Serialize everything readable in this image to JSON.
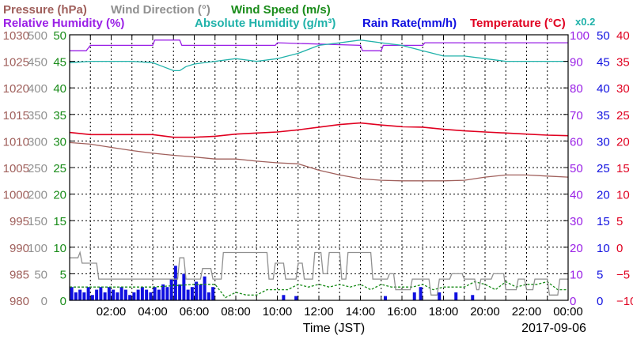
{
  "chart_data": {
    "type": "line",
    "date": "2017-09-06",
    "xlabel": "Time (JST)",
    "x_ticks": [
      "02:00",
      "04:00",
      "06:00",
      "08:00",
      "10:00",
      "12:00",
      "14:00",
      "16:00",
      "18:00",
      "20:00",
      "22:00",
      "00:00"
    ],
    "legend": [
      {
        "label": "Pressure (hPa)",
        "color": "#a0605c"
      },
      {
        "label": "Wind Direction (°)",
        "color": "#909090"
      },
      {
        "label": "Wind Speed (m/s)",
        "color": "#1a8c1a"
      },
      {
        "label": "Relative Humidity (%)",
        "color": "#9a20e6"
      },
      {
        "label": "Absolute Humidity (g/m³)",
        "color": "#20b2aa",
        "scale_note": "x0.2"
      },
      {
        "label": "Rain Rate(mm/h)",
        "color": "#1010e0"
      },
      {
        "label": "Temperature (°C)",
        "color": "#e00020"
      }
    ],
    "axes": [
      {
        "name": "Pressure",
        "unit": "hPa",
        "color": "#a0605c",
        "range": [
          980,
          1030
        ],
        "ticks": [
          "1030",
          "1025",
          "1020",
          "1015",
          "1010",
          "1005",
          "1000",
          "995",
          "990",
          "985",
          "980"
        ]
      },
      {
        "name": "Wind Direction",
        "unit": "°",
        "color": "#909090",
        "range": [
          0,
          500
        ],
        "ticks": [
          "500",
          "450",
          "400",
          "350",
          "300",
          "250",
          "200",
          "150",
          "100",
          "50",
          "0"
        ]
      },
      {
        "name": "Wind Speed",
        "unit": "m/s",
        "color": "#1a8c1a",
        "range": [
          0,
          50
        ],
        "ticks": [
          "50",
          "45",
          "40",
          "35",
          "30",
          "25",
          "20",
          "15",
          "10",
          "5",
          "0"
        ]
      },
      {
        "name": "Relative Humidity",
        "unit": "%",
        "color": "#9a20e6",
        "range": [
          0,
          100
        ],
        "ticks": [
          "100",
          "90",
          "80",
          "70",
          "60",
          "50",
          "40",
          "30",
          "20",
          "10",
          "0"
        ]
      },
      {
        "name": "Rain Rate",
        "unit": "mm/h",
        "color": "#1010e0",
        "range": [
          0,
          50
        ],
        "ticks": [
          "50",
          "45",
          "40",
          "35",
          "30",
          "25",
          "20",
          "15",
          "10",
          "5",
          "0"
        ]
      },
      {
        "name": "Temperature",
        "unit": "°C",
        "color": "#e00020",
        "range": [
          -10,
          40
        ],
        "ticks": [
          "40",
          "35",
          "30",
          "25",
          "20",
          "15",
          "10",
          "5",
          "0",
          "−5",
          "−10"
        ]
      }
    ],
    "series": [
      {
        "name": "Pressure (hPa)",
        "color": "#a0605c",
        "x": [
          0,
          1,
          2,
          3,
          4,
          5,
          6,
          7,
          8,
          9,
          10,
          11,
          12,
          13,
          14,
          15,
          16,
          17,
          18,
          19,
          20,
          21,
          22,
          23,
          24
        ],
        "values": [
          1009.7,
          1009.4,
          1008.8,
          1008.2,
          1007.7,
          1007.3,
          1007.0,
          1006.6,
          1006.6,
          1006.2,
          1005.9,
          1005.7,
          1004.5,
          1003.6,
          1002.9,
          1002.6,
          1002.5,
          1002.5,
          1002.5,
          1002.6,
          1003.2,
          1003.6,
          1003.6,
          1003.4,
          1003.2
        ]
      },
      {
        "name": "Temperature (°C)",
        "color": "#e00020",
        "x": [
          0,
          1,
          2,
          3,
          4,
          5,
          6,
          7,
          8,
          9,
          10,
          11,
          12,
          13,
          14,
          15,
          16,
          17,
          18,
          19,
          20,
          21,
          22,
          23,
          24
        ],
        "values": [
          21.6,
          21.2,
          21.2,
          21.2,
          21.2,
          20.7,
          20.7,
          20.9,
          21.3,
          21.5,
          21.7,
          22.1,
          22.6,
          23.1,
          23.4,
          23.0,
          22.7,
          22.6,
          22.2,
          21.9,
          21.7,
          21.5,
          21.3,
          21.1,
          21.0
        ]
      },
      {
        "name": "Relative Humidity (%)",
        "color": "#9a20e6",
        "x": [
          0,
          0.8,
          1.0,
          4.0,
          4.1,
          5.3,
          5.4,
          9.9,
          10.0,
          14.0,
          14.1,
          15.0,
          15.1,
          17.0,
          17.1,
          24
        ],
        "values": [
          94,
          94,
          96,
          96,
          98,
          98,
          96,
          96,
          97,
          96,
          94,
          94,
          96,
          96,
          97,
          97
        ]
      },
      {
        "name": "Absolute Humidity (g/m³)",
        "color": "#20b2aa",
        "scale": "x0.2",
        "x": [
          0,
          1,
          2,
          3,
          4,
          4.5,
          5.0,
          5.3,
          5.6,
          6.0,
          7,
          8,
          9,
          10,
          11,
          12,
          13,
          14,
          15,
          16,
          17,
          18,
          19,
          20,
          21,
          22,
          23,
          24
        ],
        "values": [
          89.5,
          90,
          90,
          90,
          89.5,
          88,
          86.5,
          86.5,
          88,
          89,
          90,
          91,
          90,
          91,
          93,
          96,
          97,
          98,
          97,
          96,
          94,
          92,
          92,
          91,
          90,
          90,
          90,
          90
        ]
      },
      {
        "name": "Wind Direction (°)",
        "color": "#909090",
        "x": [
          0,
          0.4,
          0.5,
          0.6,
          1.3,
          1.4,
          5.2,
          5.3,
          5.5,
          5.6,
          6.3,
          6.4,
          6.8,
          6.9,
          7.3,
          7.4,
          9.5,
          9.6,
          9.8,
          9.9,
          10.3,
          10.4,
          10.9,
          11.0,
          11.2,
          11.3,
          11.7,
          11.8,
          12.1,
          12.2,
          12.4,
          12.5,
          13.0,
          13.1,
          13.3,
          13.4,
          14.5,
          14.6,
          15.3,
          15.4,
          15.6,
          15.7,
          16.4,
          16.5,
          17.3,
          17.4,
          17.7,
          17.8,
          18.3,
          18.4,
          18.9,
          19.0,
          19.5,
          19.6,
          19.7,
          19.8,
          20.3,
          20.4,
          20.9,
          21.0,
          21.5,
          21.6,
          21.9,
          22.0,
          22.3,
          22.4,
          23.0,
          23.1,
          23.5,
          23.6,
          24
        ],
        "values": [
          80,
          80,
          90,
          70,
          70,
          40,
          40,
          80,
          80,
          40,
          40,
          60,
          60,
          40,
          40,
          90,
          90,
          40,
          40,
          70,
          70,
          40,
          40,
          70,
          70,
          40,
          40,
          90,
          90,
          50,
          50,
          90,
          90,
          40,
          40,
          90,
          90,
          40,
          40,
          50,
          50,
          20,
          20,
          40,
          40,
          10,
          10,
          40,
          40,
          50,
          50,
          40,
          40,
          20,
          20,
          40,
          40,
          50,
          50,
          20,
          20,
          40,
          40,
          20,
          20,
          40,
          40,
          10,
          10,
          40,
          40
        ]
      },
      {
        "name": "Wind Speed (m/s)",
        "color": "#1a8c1a",
        "x": [
          0,
          2,
          4,
          6,
          7,
          7.5,
          8,
          8.5,
          9,
          9.5,
          10,
          10.5,
          11,
          11.5,
          12,
          12.5,
          13,
          13.5,
          14,
          14.5,
          15,
          15.5,
          16,
          16.5,
          17,
          17.5,
          18,
          18.5,
          19,
          19.5,
          20,
          20.5,
          21,
          21.5,
          22,
          22.5,
          23,
          23.5,
          24
        ],
        "values": [
          2.5,
          2.5,
          2.5,
          3.0,
          3.0,
          0.5,
          1.5,
          1.0,
          1.0,
          2.0,
          2.0,
          2.0,
          3.0,
          2.5,
          3.0,
          2.5,
          3.0,
          2.5,
          3.0,
          2.0,
          3.0,
          2.5,
          2.5,
          2.5,
          3.0,
          2.0,
          2.5,
          2.5,
          2.5,
          3.5,
          3.0,
          2.0,
          3.5,
          2.5,
          3.0,
          3.0,
          3.5,
          2.0,
          2.0
        ]
      },
      {
        "name": "Rain Rate(mm/h)",
        "color": "#1010e0",
        "style": "bars",
        "x": [
          0.1,
          0.3,
          0.5,
          0.7,
          0.9,
          1.1,
          1.3,
          1.5,
          1.7,
          1.9,
          2.1,
          2.3,
          2.5,
          2.7,
          2.9,
          3.1,
          3.3,
          3.5,
          3.7,
          3.9,
          4.1,
          4.3,
          4.5,
          4.7,
          4.9,
          5.1,
          5.3,
          5.5,
          5.7,
          5.9,
          6.1,
          6.3,
          6.5,
          6.7,
          6.9,
          10.3,
          10.9,
          15.2,
          16.6,
          16.9,
          17.8,
          18.6,
          19.4
        ],
        "values": [
          2.5,
          1.5,
          2.0,
          1.5,
          2.5,
          1.0,
          2.0,
          2.5,
          1.5,
          2.5,
          2.0,
          1.5,
          2.5,
          2.0,
          1.0,
          1.5,
          2.0,
          2.5,
          2.0,
          1.5,
          2.5,
          2.0,
          3.0,
          2.5,
          4.0,
          6.5,
          3.0,
          5.0,
          2.0,
          2.5,
          3.5,
          3.0,
          4.5,
          1.5,
          2.5,
          1.0,
          0.8,
          0.8,
          1.5,
          2.5,
          1.5,
          1.5,
          1.0
        ]
      }
    ]
  }
}
